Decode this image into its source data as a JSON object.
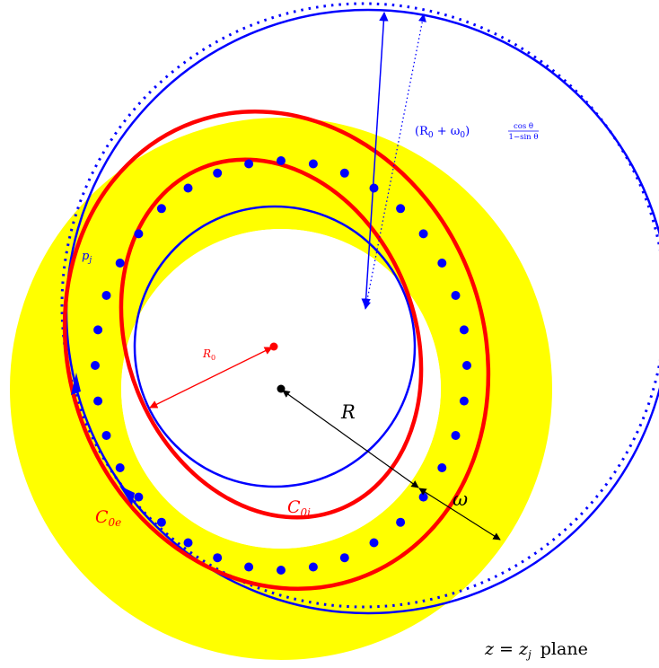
{
  "colors": {
    "annulus": "#ffff00",
    "blue": "#0000ff",
    "red": "#ff0000",
    "black": "#000000",
    "white": "#ffffff"
  },
  "labels": {
    "r0_prefix": "(R",
    "r0_sub": "0",
    "plus": " + ω",
    "omega_sub": "0",
    "r0_close": ")",
    "frac_num": "cos θ",
    "frac_den": "1−sin θ",
    "pj": "p",
    "pj_sub": "j",
    "R0": "R",
    "R0_sub": "0",
    "R": "R",
    "omega": "ω",
    "c0i": "C",
    "c0i_sub": "0i",
    "c0e": "C",
    "c0e_sub": "0e",
    "plane_z": "z",
    "plane_eq": " = ",
    "plane_zj": "z",
    "plane_zj_sub": "j",
    "plane_word": "plane"
  }
}
